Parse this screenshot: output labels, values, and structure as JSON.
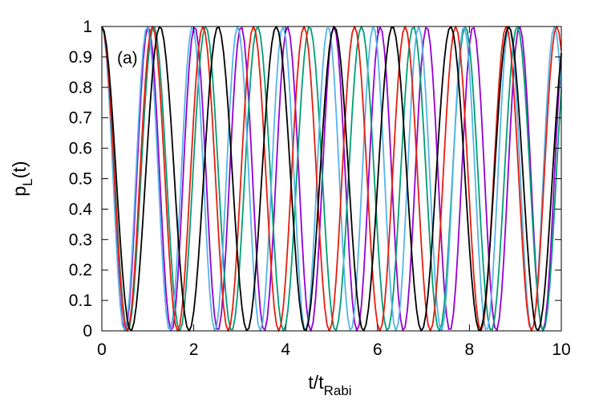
{
  "chart_data": {
    "type": "line",
    "annotation": "(a)",
    "xlabel": {
      "main": "t/t",
      "sub": "Rabi"
    },
    "ylabel": {
      "main": "p",
      "sub": "L",
      "suffix": "(t)"
    },
    "xlim": [
      0,
      10
    ],
    "ylim": [
      0,
      1
    ],
    "xticks": [
      "0",
      "2",
      "4",
      "6",
      "8",
      "10"
    ],
    "xtick_values": [
      0,
      2,
      4,
      6,
      8,
      10
    ],
    "yticks": [
      "0",
      "0.1",
      "0.2",
      "0.3",
      "0.4",
      "0.5",
      "0.6",
      "0.7",
      "0.8",
      "0.9",
      "1"
    ],
    "ytick_values": [
      0,
      0.1,
      0.2,
      0.3,
      0.4,
      0.5,
      0.6,
      0.7,
      0.8,
      0.9,
      1.0
    ],
    "grid": false,
    "legend": "none",
    "series": [
      {
        "color": "#9400d3",
        "period": 1.01,
        "sample_dt": 0.05
      },
      {
        "color": "#009e73",
        "period": 1.13,
        "sample_dt": 0.05
      },
      {
        "color": "#56b4e9",
        "period": 0.985,
        "sample_dt": 0.05
      },
      {
        "color": "#e51e10",
        "period": 1.1,
        "sample_dt": 0.05
      },
      {
        "color": "#000000",
        "period": 1.265,
        "sample_dt": 0.05
      }
    ]
  }
}
